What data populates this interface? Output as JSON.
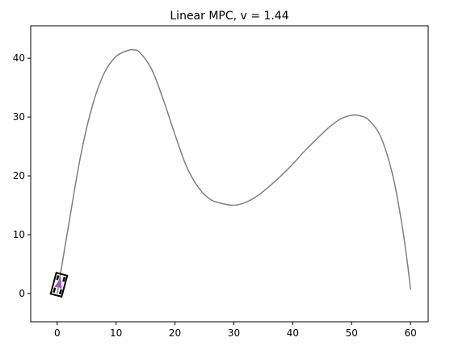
{
  "chart_data": {
    "type": "line",
    "title": "Linear MPC, v = 1.44",
    "xlabel": "",
    "ylabel": "",
    "xlim": [
      -4.5,
      63
    ],
    "ylim": [
      -4.8,
      45.5
    ],
    "xticks": [
      0,
      10,
      20,
      30,
      40,
      50,
      60
    ],
    "yticks": [
      0,
      10,
      20,
      30,
      40
    ],
    "xtick_labels": [
      "0",
      "10",
      "20",
      "30",
      "40",
      "50",
      "60"
    ],
    "ytick_labels": [
      "0",
      "10",
      "20",
      "30",
      "40"
    ],
    "grid": false,
    "series": [
      {
        "color": "#808080",
        "x": [
          0,
          2,
          4,
          6,
          8,
          10,
          12,
          13,
          14,
          16,
          18,
          20,
          22,
          24,
          26,
          28,
          30,
          32,
          34,
          36,
          38,
          40,
          42,
          44,
          46,
          48,
          50,
          51.5,
          53,
          55,
          57,
          58.5,
          59.5,
          60
        ],
        "y": [
          0,
          12,
          23.5,
          32,
          37.5,
          40.3,
          41.3,
          41.4,
          41,
          38.2,
          33,
          27,
          21.5,
          18,
          16,
          15.3,
          15,
          15.5,
          16.6,
          18.2,
          20,
          22,
          24.2,
          26.2,
          28.1,
          29.6,
          30.3,
          30.2,
          29.4,
          26.5,
          20,
          12,
          5,
          0.7
        ]
      }
    ],
    "vehicle": {
      "x": 0.3,
      "y": 1.5,
      "heading_deg": 75,
      "body_color": "#000000",
      "marker_color": "#9b59b6"
    }
  }
}
